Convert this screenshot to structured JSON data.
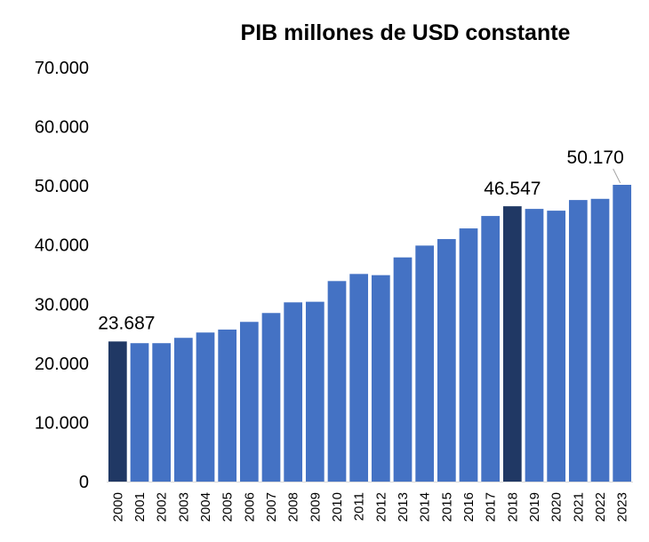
{
  "chart_data": {
    "type": "bar",
    "title": "PIB millones de USD constante",
    "xlabel": "",
    "ylabel": "",
    "ylim": [
      0,
      70000
    ],
    "yticks": [
      0,
      10000,
      20000,
      30000,
      40000,
      50000,
      60000,
      70000
    ],
    "ytick_labels": [
      "0",
      "10.000",
      "20.000",
      "30.000",
      "40.000",
      "50.000",
      "60.000",
      "70.000"
    ],
    "grid": false,
    "legend": "none",
    "categories": [
      "2000",
      "2001",
      "2002",
      "2003",
      "2004",
      "2005",
      "2006",
      "2007",
      "2008",
      "2009",
      "2010",
      "2011",
      "2012",
      "2013",
      "2014",
      "2015",
      "2016",
      "2017",
      "2018",
      "2019",
      "2020",
      "2021",
      "2022",
      "2023"
    ],
    "values": [
      23687,
      23400,
      23400,
      24300,
      25200,
      25700,
      27000,
      28500,
      30300,
      30400,
      33900,
      35100,
      34900,
      37900,
      39900,
      41000,
      42800,
      44900,
      46547,
      46100,
      45800,
      47600,
      47800,
      50170
    ],
    "bar_color": "#4472c4",
    "highlight_color": "#203864",
    "highlight_indices": [
      0,
      18
    ],
    "data_labels": [
      {
        "index": 0,
        "text": "23.687"
      },
      {
        "index": 18,
        "text": "46.547"
      },
      {
        "index": 23,
        "text": "50.170"
      }
    ]
  }
}
